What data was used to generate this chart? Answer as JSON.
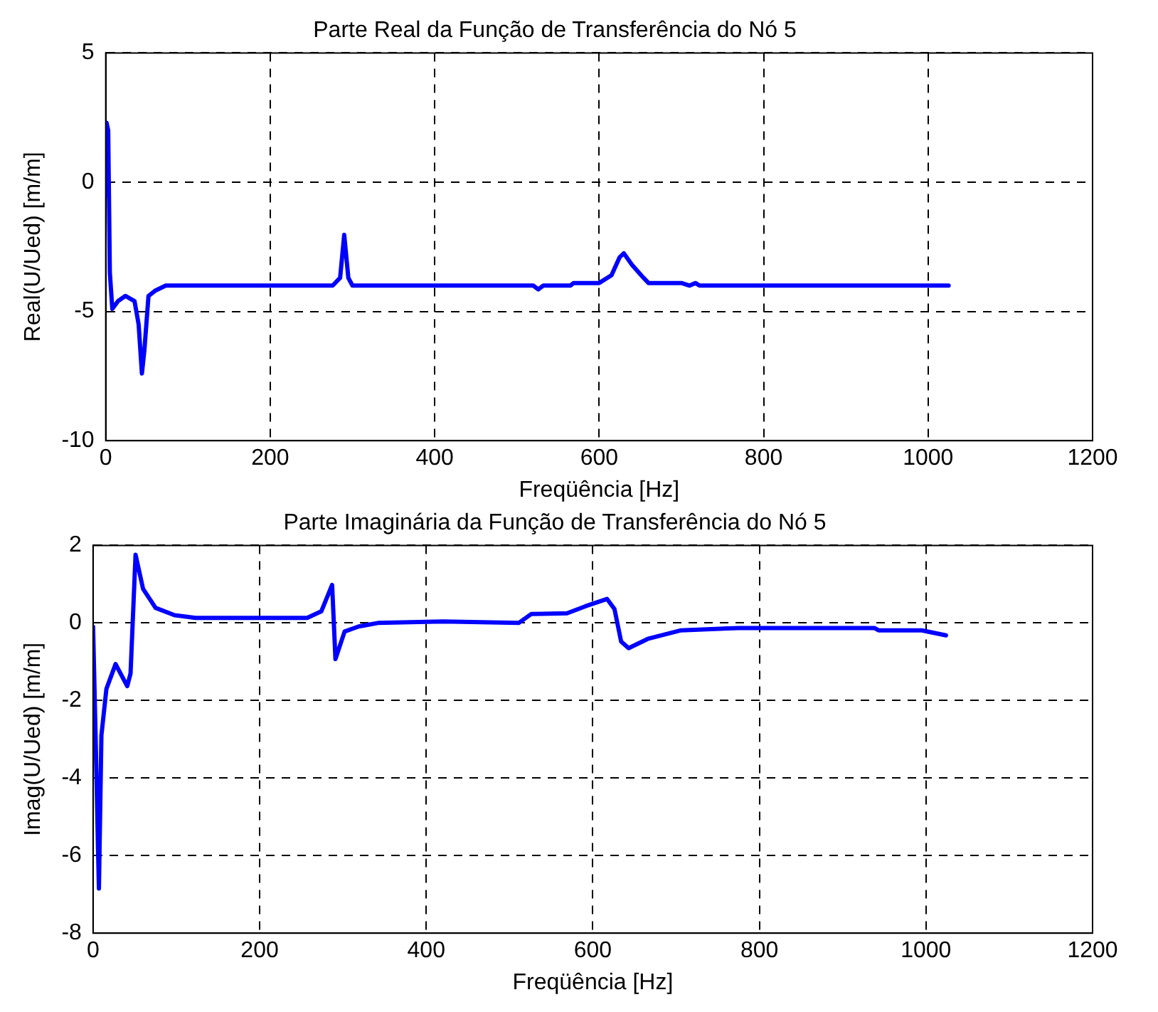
{
  "chart_data": [
    {
      "type": "line",
      "title": "Parte Real da Função de Transferência do Nó 5",
      "xlabel": "Freqüência [Hz]",
      "ylabel": "Real(U/Ued) [m/m]",
      "xlim": [
        0,
        1200
      ],
      "xticks": [
        0,
        200,
        400,
        600,
        800,
        1000,
        1200
      ],
      "ylim": [
        -10,
        5
      ],
      "yticks": [
        -10,
        -5,
        0,
        5
      ],
      "grid": true,
      "legend": false,
      "marker": "none",
      "line_style": "solid",
      "series": [
        {
          "color": "#0000ff",
          "x": [
            0,
            1,
            3,
            5,
            8,
            15,
            24,
            35,
            40,
            44,
            47,
            52,
            60,
            73,
            276,
            285,
            290,
            295,
            300,
            520,
            526,
            532,
            565,
            569,
            600,
            615,
            625,
            630,
            640,
            654,
            660,
            700,
            710,
            717,
            722,
            1025
          ],
          "values": [
            -0.5,
            2.3,
            2.0,
            -3.5,
            -4.9,
            -4.6,
            -4.4,
            -4.6,
            -5.5,
            -7.4,
            -6.5,
            -4.4,
            -4.2,
            -4.0,
            -4.0,
            -3.7,
            -2.04,
            -3.7,
            -4.0,
            -4.0,
            -4.15,
            -4.0,
            -4.0,
            -3.9,
            -3.9,
            -3.6,
            -2.9,
            -2.75,
            -3.2,
            -3.7,
            -3.9,
            -3.9,
            -4.0,
            -3.9,
            -4.0,
            -4.0
          ]
        }
      ]
    },
    {
      "type": "line",
      "title": "Parte Imaginária da Função de Transferência do Nó 5",
      "xlabel": "Freqüência [Hz]",
      "ylabel": "Imag(U/Ued) [m/m]",
      "xlim": [
        0,
        1200
      ],
      "xticks": [
        0,
        200,
        400,
        600,
        800,
        1000,
        1200
      ],
      "ylim": [
        -8,
        2
      ],
      "yticks": [
        -8,
        -6,
        -4,
        -2,
        0,
        2
      ],
      "grid": true,
      "legend": false,
      "marker": "none",
      "line_style": "solid",
      "series": [
        {
          "color": "#0000ff",
          "x": [
            0,
            3,
            7,
            10,
            16,
            27,
            41,
            45,
            51,
            60,
            75,
            98,
            123,
            257,
            274,
            287,
            291,
            302,
            319,
            342,
            420,
            511,
            526,
            569,
            591,
            617,
            626,
            634,
            643,
            666,
            706,
            775,
            938,
            943,
            995,
            1024
          ],
          "values": [
            -0.1,
            -2.9,
            -6.85,
            -2.9,
            -1.7,
            -1.06,
            -1.63,
            -1.3,
            1.76,
            0.88,
            0.39,
            0.2,
            0.13,
            0.13,
            0.3,
            0.98,
            -0.93,
            -0.22,
            -0.09,
            0.0,
            0.04,
            0.0,
            0.23,
            0.25,
            0.43,
            0.62,
            0.36,
            -0.48,
            -0.65,
            -0.41,
            -0.19,
            -0.13,
            -0.13,
            -0.19,
            -0.19,
            -0.32
          ]
        }
      ]
    }
  ]
}
